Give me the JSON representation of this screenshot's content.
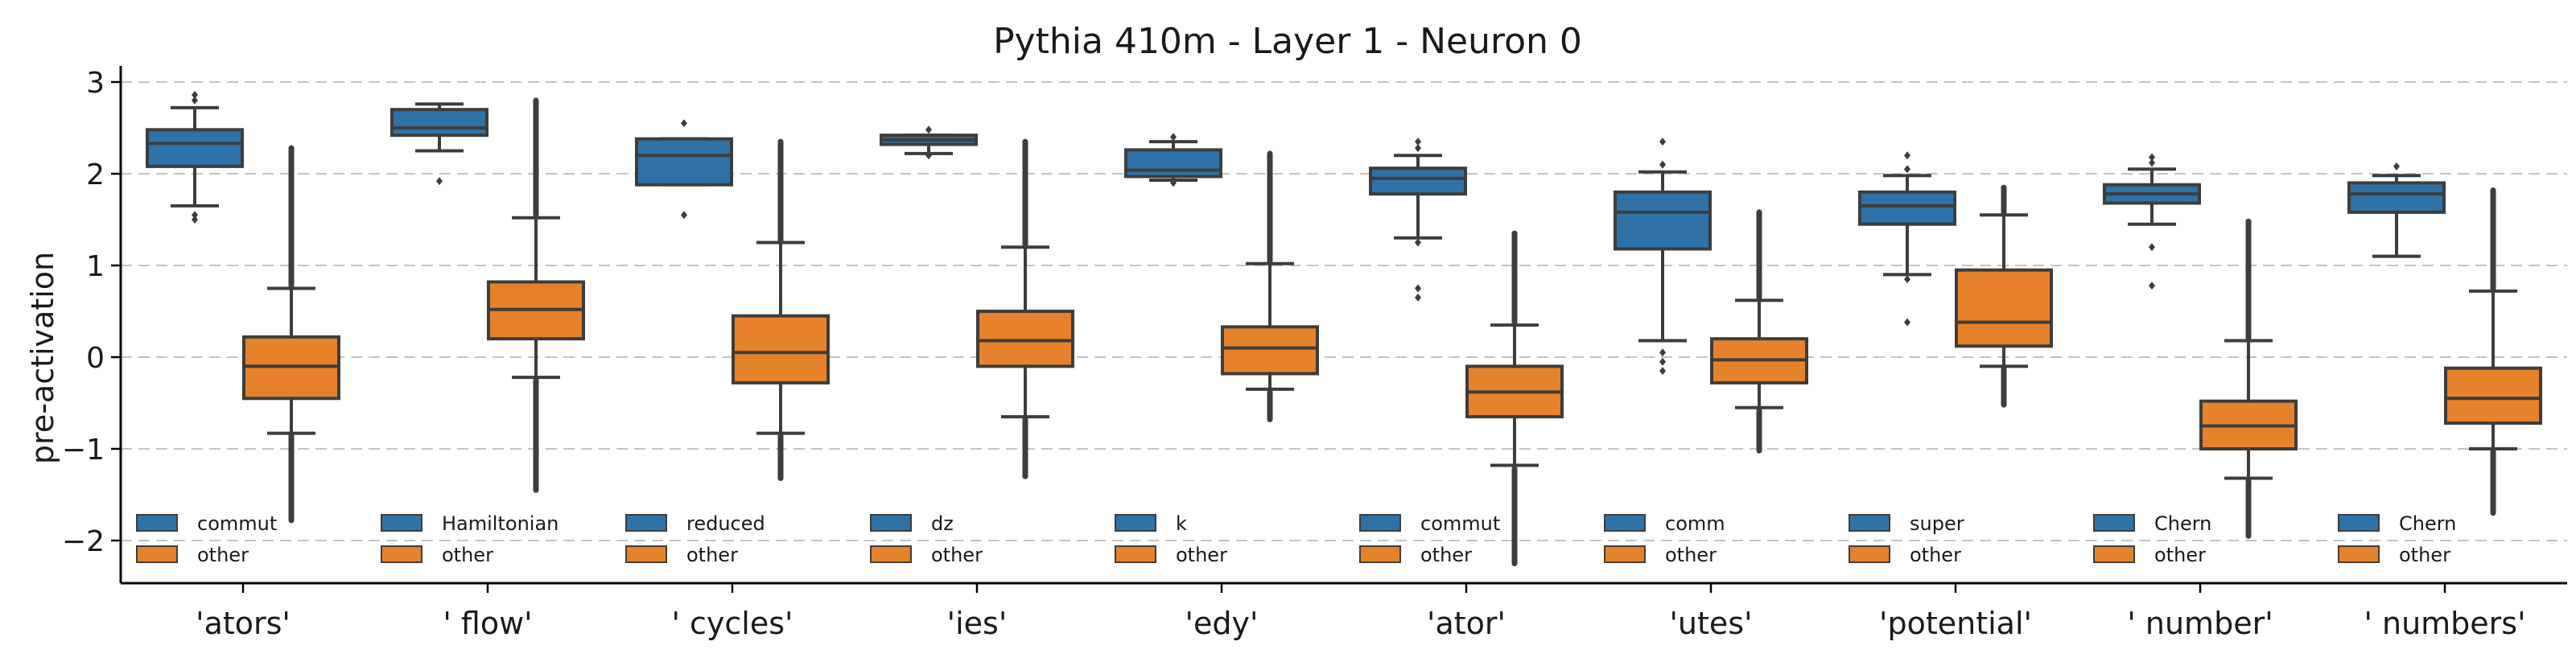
{
  "chart_data": {
    "type": "box",
    "title": "Pythia 410m - Layer 1 - Neuron 0",
    "xlabel": "",
    "ylabel": "pre-activation",
    "ylim": [
      -2.5,
      3.1
    ],
    "yticks": [
      3,
      2,
      1,
      0,
      -1,
      -2
    ],
    "ytick_labels": [
      "3",
      "2",
      "1",
      "0",
      "−1",
      "−2"
    ],
    "grid": "horizontal dashed",
    "categories": [
      "'ators'",
      "' flow'",
      "' cycles'",
      "'ies'",
      "'edy'",
      "'ator'",
      "'utes'",
      "'potential'",
      "' number'",
      "' numbers'"
    ],
    "legend_other_label": "other",
    "colors": {
      "highlight": "#2e72a8",
      "other": "#e6822a",
      "median_mean": "#3d3d3d",
      "grid": "#c4c4c4",
      "axis": "#000000",
      "text": "#1a1a1a"
    },
    "groups": [
      {
        "category": "'ators'",
        "legend_label": "commut",
        "highlight": {
          "q1": 2.08,
          "median": 2.33,
          "q3": 2.48,
          "whislo": 1.65,
          "whishi": 2.72,
          "fliers_lo": [
            1.55,
            1.5
          ],
          "fliers_hi": [
            2.8,
            2.86
          ]
        },
        "other": {
          "q1": -0.45,
          "median": -0.1,
          "q3": 0.22,
          "whislo": -0.83,
          "whishi": 0.75,
          "flier_lo": [
            -0.85,
            -1.78
          ],
          "flier_hi": [
            0.78,
            2.28
          ]
        }
      },
      {
        "category": "' flow'",
        "legend_label": "Hamiltonian",
        "highlight": {
          "q1": 2.42,
          "median": 2.5,
          "q3": 2.7,
          "whislo": 2.25,
          "whishi": 2.76,
          "fliers_lo": [
            1.92
          ],
          "fliers_hi": []
        },
        "other": {
          "q1": 0.2,
          "median": 0.52,
          "q3": 0.82,
          "whislo": -0.22,
          "whishi": 1.52,
          "flier_lo": [
            -0.25,
            -1.45
          ],
          "flier_hi": [
            1.55,
            2.8
          ]
        }
      },
      {
        "category": "' cycles'",
        "legend_label": "reduced",
        "highlight": {
          "q1": 1.88,
          "median": 2.2,
          "q3": 2.38,
          "whislo": 1.88,
          "whishi": 2.38,
          "fliers_lo": [
            1.55
          ],
          "fliers_hi": [
            2.55
          ]
        },
        "other": {
          "q1": -0.28,
          "median": 0.05,
          "q3": 0.45,
          "whislo": -0.83,
          "whishi": 1.25,
          "flier_lo": [
            -0.86,
            -1.32
          ],
          "flier_hi": [
            1.28,
            2.35
          ]
        }
      },
      {
        "category": "'ies'",
        "legend_label": "dz",
        "highlight": {
          "q1": 2.32,
          "median": 2.37,
          "q3": 2.42,
          "whislo": 2.22,
          "whishi": 2.42,
          "fliers_lo": [
            2.2
          ],
          "fliers_hi": [
            2.48
          ]
        },
        "other": {
          "q1": -0.1,
          "median": 0.18,
          "q3": 0.5,
          "whislo": -0.65,
          "whishi": 1.2,
          "flier_lo": [
            -0.68,
            -1.3
          ],
          "flier_hi": [
            1.23,
            2.35
          ]
        }
      },
      {
        "category": "'edy'",
        "legend_label": "k",
        "highlight": {
          "q1": 1.97,
          "median": 2.04,
          "q3": 2.26,
          "whislo": 1.93,
          "whishi": 2.35,
          "fliers_lo": [
            1.9
          ],
          "fliers_hi": [
            2.4
          ]
        },
        "other": {
          "q1": -0.18,
          "median": 0.1,
          "q3": 0.33,
          "whislo": -0.35,
          "whishi": 1.02,
          "flier_lo": [
            -0.38,
            -0.68
          ],
          "flier_hi": [
            1.05,
            2.22
          ]
        }
      },
      {
        "category": "'ator'",
        "legend_label": "commut",
        "highlight": {
          "q1": 1.78,
          "median": 1.95,
          "q3": 2.06,
          "whislo": 1.3,
          "whishi": 2.2,
          "fliers_lo": [
            1.25,
            0.75,
            0.65
          ],
          "fliers_hi": [
            2.28,
            2.35
          ]
        },
        "other": {
          "q1": -0.65,
          "median": -0.38,
          "q3": -0.1,
          "whislo": -1.18,
          "whishi": 0.35,
          "flier_lo": [
            -1.22,
            -2.25
          ],
          "flier_hi": [
            0.38,
            1.35
          ]
        }
      },
      {
        "category": "'utes'",
        "legend_label": "comm",
        "highlight": {
          "q1": 1.18,
          "median": 1.58,
          "q3": 1.8,
          "whislo": 0.18,
          "whishi": 2.02,
          "fliers_lo": [
            0.05,
            -0.05,
            -0.15
          ],
          "fliers_hi": [
            2.1,
            2.35
          ]
        },
        "other": {
          "q1": -0.28,
          "median": -0.03,
          "q3": 0.2,
          "whislo": -0.55,
          "whishi": 0.62,
          "flier_lo": [
            -0.58,
            -1.02
          ],
          "flier_hi": [
            0.65,
            1.58
          ]
        }
      },
      {
        "category": "'potential'",
        "legend_label": "super",
        "highlight": {
          "q1": 1.45,
          "median": 1.65,
          "q3": 1.8,
          "whislo": 0.9,
          "whishi": 1.98,
          "fliers_lo": [
            0.85,
            0.38
          ],
          "fliers_hi": [
            2.05,
            2.2
          ]
        },
        "other": {
          "q1": 0.12,
          "median": 0.38,
          "q3": 0.95,
          "whislo": -0.1,
          "whishi": 1.55,
          "flier_lo": [
            -0.13,
            -0.52
          ],
          "flier_hi": [
            1.58,
            1.85
          ]
        }
      },
      {
        "category": "' number'",
        "legend_label": "Chern",
        "highlight": {
          "q1": 1.68,
          "median": 1.78,
          "q3": 1.88,
          "whislo": 1.45,
          "whishi": 2.05,
          "fliers_lo": [
            1.2,
            0.78
          ],
          "fliers_hi": [
            2.12,
            2.18
          ]
        },
        "other": {
          "q1": -1.0,
          "median": -0.75,
          "q3": -0.48,
          "whislo": -1.32,
          "whishi": 0.18,
          "flier_lo": [
            -1.35,
            -1.95
          ],
          "flier_hi": [
            0.21,
            1.48
          ]
        }
      },
      {
        "category": "' numbers'",
        "legend_label": "Chern",
        "highlight": {
          "q1": 1.58,
          "median": 1.78,
          "q3": 1.9,
          "whislo": 1.1,
          "whishi": 1.98,
          "fliers_lo": [],
          "fliers_hi": [
            2.08
          ]
        },
        "other": {
          "q1": -0.72,
          "median": -0.45,
          "q3": -0.12,
          "whislo": -1.0,
          "whishi": 0.72,
          "flier_lo": [
            -1.03,
            -1.7
          ],
          "flier_hi": [
            0.75,
            1.82
          ]
        }
      }
    ]
  }
}
